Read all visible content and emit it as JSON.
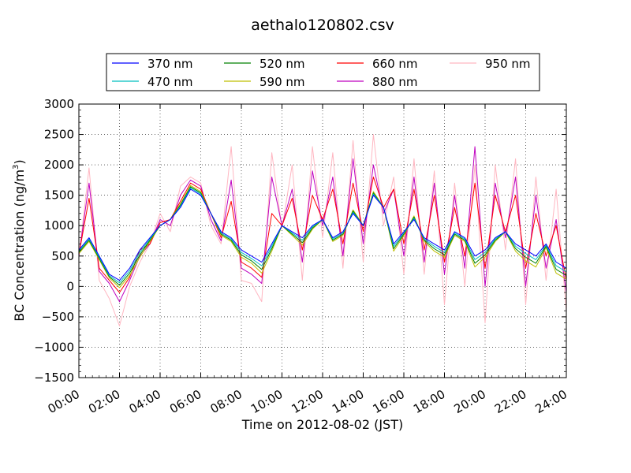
{
  "chart_data": {
    "type": "line",
    "title": "aethalo120802.csv",
    "xlabel": "Time on 2012-08-02 (JST)",
    "ylabel_main": "BC Concentration (ng/m",
    "ylabel_sup": "3",
    "ylabel_close": ")",
    "xlim": [
      "00:00",
      "24:00"
    ],
    "ylim": [
      -1500,
      3000
    ],
    "yticks": [
      -1500,
      -1000,
      -500,
      0,
      500,
      1000,
      1500,
      2000,
      2500,
      3000
    ],
    "ytick_labels": [
      "−1500",
      "−1000",
      "−500",
      "0",
      "500",
      "1000",
      "1500",
      "2000",
      "2500",
      "3000"
    ],
    "xtick_labels": [
      "00:00",
      "02:00",
      "04:00",
      "06:00",
      "08:00",
      "10:00",
      "12:00",
      "14:00",
      "16:00",
      "18:00",
      "20:00",
      "22:00",
      "24:00"
    ],
    "grid": true,
    "legend_position": "top",
    "x_hours": [
      0,
      0.5,
      1.0,
      1.5,
      2.0,
      2.5,
      3.0,
      3.5,
      4.0,
      4.5,
      5.0,
      5.5,
      6.0,
      6.5,
      7.0,
      7.5,
      8.0,
      8.5,
      9.0,
      9.5,
      10.0,
      10.5,
      11.0,
      11.5,
      12.0,
      12.5,
      13.0,
      13.5,
      14.0,
      14.5,
      15.0,
      15.5,
      16.0,
      16.5,
      17.0,
      17.5,
      18.0,
      18.5,
      19.0,
      19.5,
      20.0,
      20.5,
      21.0,
      21.5,
      22.0,
      22.5,
      23.0,
      23.5,
      24.0
    ],
    "series": [
      {
        "name": "370 nm",
        "color": "#0000ff",
        "values": [
          600,
          800,
          500,
          200,
          100,
          300,
          600,
          800,
          1000,
          1100,
          1300,
          1600,
          1500,
          1200,
          900,
          800,
          600,
          500,
          400,
          700,
          1000,
          900,
          800,
          1000,
          1100,
          800,
          900,
          1200,
          1000,
          1500,
          1300,
          700,
          900,
          1100,
          800,
          700,
          600,
          900,
          800,
          500,
          600,
          800,
          900,
          700,
          600,
          500,
          700,
          400,
          300
        ]
      },
      {
        "name": "470 nm",
        "color": "#00bfbf",
        "values": [
          580,
          780,
          480,
          180,
          60,
          260,
          560,
          780,
          1000,
          1100,
          1320,
          1620,
          1520,
          1200,
          880,
          780,
          560,
          460,
          340,
          660,
          1000,
          880,
          760,
          980,
          1100,
          780,
          880,
          1220,
          1000,
          1520,
          1300,
          660,
          880,
          1120,
          780,
          660,
          560,
          880,
          780,
          440,
          560,
          780,
          900,
          660,
          540,
          440,
          680,
          340,
          240
        ]
      },
      {
        "name": "520 nm",
        "color": "#008000",
        "values": [
          560,
          760,
          460,
          160,
          20,
          220,
          520,
          760,
          1000,
          1100,
          1340,
          1640,
          1540,
          1200,
          860,
          760,
          520,
          420,
          280,
          620,
          1000,
          860,
          720,
          960,
          1100,
          760,
          860,
          1240,
          1000,
          1540,
          1300,
          620,
          860,
          1140,
          760,
          620,
          520,
          860,
          760,
          380,
          520,
          760,
          900,
          620,
          480,
          380,
          660,
          280,
          180
        ]
      },
      {
        "name": "590 nm",
        "color": "#bfbf00",
        "values": [
          540,
          740,
          440,
          140,
          -20,
          180,
          480,
          740,
          1000,
          1100,
          1360,
          1660,
          1560,
          1200,
          840,
          740,
          480,
          380,
          220,
          580,
          1000,
          840,
          680,
          940,
          1100,
          740,
          840,
          1260,
          1000,
          1560,
          1300,
          580,
          840,
          1160,
          740,
          580,
          480,
          840,
          740,
          320,
          480,
          740,
          900,
          580,
          420,
          320,
          640,
          220,
          120
        ]
      },
      {
        "name": "660 nm",
        "color": "#ff0000",
        "values": [
          520,
          1450,
          300,
          100,
          -100,
          150,
          600,
          700,
          1050,
          1100,
          1400,
          1700,
          1600,
          1200,
          800,
          1400,
          400,
          300,
          150,
          1200,
          1000,
          1450,
          600,
          1500,
          1100,
          1600,
          700,
          1700,
          900,
          1800,
          1300,
          1600,
          700,
          1600,
          600,
          1500,
          400,
          1300,
          500,
          1700,
          300,
          1500,
          900,
          1500,
          300,
          1200,
          500,
          1000,
          100
        ]
      },
      {
        "name": "880 nm",
        "color": "#bf00bf",
        "values": [
          500,
          1700,
          250,
          50,
          -250,
          100,
          500,
          700,
          1100,
          1000,
          1500,
          1750,
          1650,
          1100,
          750,
          1750,
          300,
          200,
          50,
          1800,
          1000,
          1600,
          400,
          1900,
          1000,
          1800,
          500,
          2100,
          700,
          2000,
          1200,
          1600,
          500,
          1800,
          400,
          1700,
          200,
          1500,
          300,
          2300,
          0,
          1700,
          800,
          1800,
          0,
          1500,
          300,
          1100,
          -100
        ]
      },
      {
        "name": "950 nm",
        "color": "#ffb6c1",
        "values": [
          480,
          1950,
          100,
          -200,
          -650,
          0,
          400,
          700,
          1200,
          900,
          1650,
          1800,
          1700,
          1000,
          700,
          2300,
          100,
          50,
          -250,
          2200,
          950,
          2000,
          100,
          2300,
          800,
          2200,
          300,
          2400,
          400,
          2500,
          1000,
          1800,
          200,
          2100,
          200,
          1900,
          -300,
          1700,
          0,
          2000,
          -600,
          2000,
          600,
          2100,
          -300,
          1800,
          100,
          1600,
          -400
        ]
      }
    ]
  }
}
